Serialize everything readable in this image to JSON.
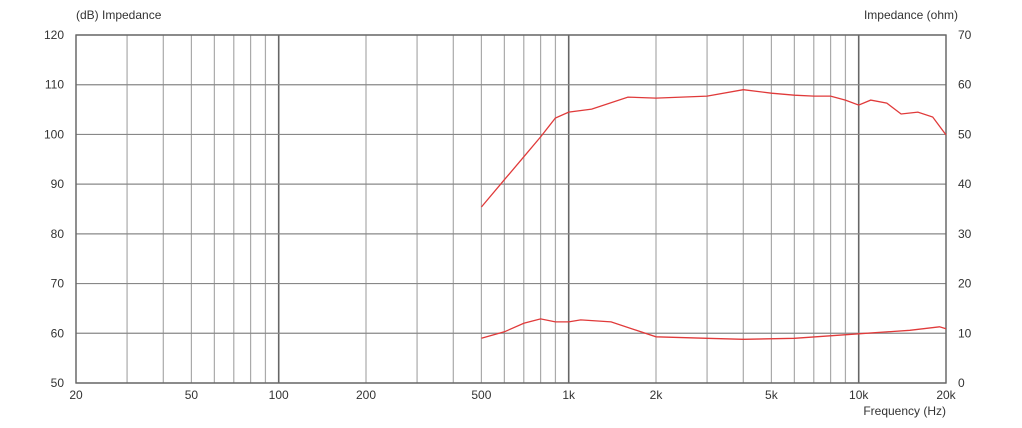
{
  "chart_data": {
    "type": "line",
    "title": "",
    "xlabel": "Frequency (Hz)",
    "ylabel_left": "(dB)  Impedance",
    "ylabel_right": "Impedance (ohm)",
    "x_scale": "log",
    "xlim": [
      20,
      20000
    ],
    "ylim_left": [
      50,
      120
    ],
    "ylim_right": [
      0,
      70
    ],
    "grid": true,
    "x_ticks": [
      {
        "v": 20,
        "label": "20"
      },
      {
        "v": 50,
        "label": "50"
      },
      {
        "v": 100,
        "label": "100"
      },
      {
        "v": 200,
        "label": "200"
      },
      {
        "v": 500,
        "label": "500"
      },
      {
        "v": 1000,
        "label": "1k"
      },
      {
        "v": 2000,
        "label": "2k"
      },
      {
        "v": 5000,
        "label": "5k"
      },
      {
        "v": 10000,
        "label": "10k"
      },
      {
        "v": 20000,
        "label": "20k"
      }
    ],
    "y_ticks_left": [
      50,
      60,
      70,
      80,
      90,
      100,
      110,
      120
    ],
    "y_ticks_right": [
      0,
      10,
      20,
      30,
      40,
      50,
      60,
      70
    ],
    "line_color": "#e03a3a",
    "series": [
      {
        "axis": "left",
        "x": [
          500,
          600,
          700,
          800,
          900,
          1000,
          1200,
          1600,
          2000,
          3000,
          4000,
          5000,
          6000,
          7000,
          8000,
          9000,
          10000,
          11000,
          12500,
          14000,
          16000,
          18000,
          20000
        ],
        "y": [
          85.4,
          90.9,
          95.5,
          99.5,
          103.3,
          104.5,
          105.1,
          107.5,
          107.3,
          107.7,
          109.0,
          108.3,
          107.9,
          107.7,
          107.7,
          106.9,
          105.9,
          106.9,
          106.3,
          104.1,
          104.5,
          103.5,
          99.9
        ]
      },
      {
        "axis": "right",
        "x": [
          500,
          600,
          700,
          800,
          900,
          1000,
          1100,
          1400,
          2000,
          3000,
          4000,
          6000,
          10000,
          15000,
          19000,
          20000
        ],
        "y": [
          9.0,
          10.3,
          12.0,
          12.9,
          12.3,
          12.3,
          12.7,
          12.3,
          9.3,
          9.0,
          8.8,
          9.0,
          9.9,
          10.6,
          11.3,
          10.9
        ]
      }
    ]
  }
}
